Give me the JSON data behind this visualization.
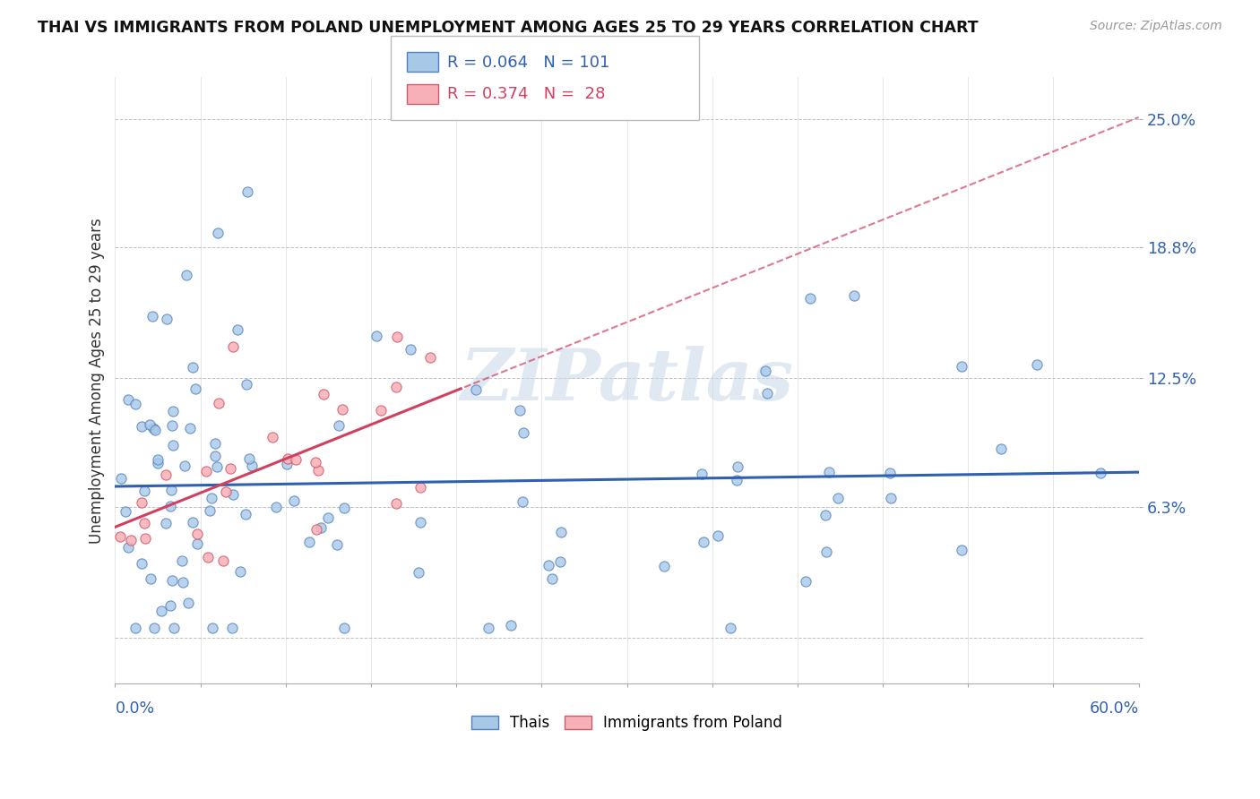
{
  "title": "THAI VS IMMIGRANTS FROM POLAND UNEMPLOYMENT AMONG AGES 25 TO 29 YEARS CORRELATION CHART",
  "source": "Source: ZipAtlas.com",
  "xmin": 0.0,
  "xmax": 0.6,
  "ymin": -0.022,
  "ymax": 0.27,
  "watermark": "ZIPatlas",
  "r_thai": 0.064,
  "n_thai": 101,
  "r_poland": 0.374,
  "n_poland": 28,
  "color_thai_fill": "#A8C8E8",
  "color_thai_edge": "#5080C0",
  "color_poland_fill": "#F8B0B8",
  "color_poland_edge": "#D05868",
  "color_thai_line": "#3060B0",
  "color_poland_line": "#D04060",
  "ytick_vals": [
    0.0,
    0.063,
    0.125,
    0.188,
    0.25
  ],
  "ytick_labels": [
    "",
    "6.3%",
    "12.5%",
    "18.8%",
    "25.0%"
  ]
}
